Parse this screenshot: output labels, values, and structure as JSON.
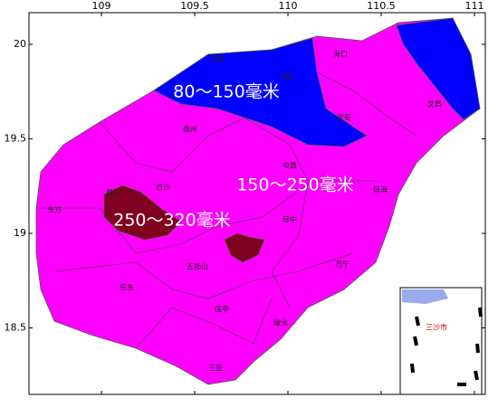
{
  "map": {
    "lon_ticks": [
      109,
      109.5,
      110,
      110.5,
      111
    ],
    "lat_ticks": [
      20,
      19.5,
      19,
      18.5
    ],
    "zones": [
      "80～150毫米",
      "150～250毫米",
      "250～320毫米"
    ],
    "places": [
      "临高",
      "澄迈",
      "海口",
      "定安",
      "文昌",
      "儋州",
      "屯昌",
      "琼海",
      "白沙",
      "昌江",
      "东方",
      "琼中",
      "五指山",
      "万宁",
      "乐东",
      "保亭",
      "陵水",
      "三亚"
    ],
    "inset_label": "三沙市"
  }
}
